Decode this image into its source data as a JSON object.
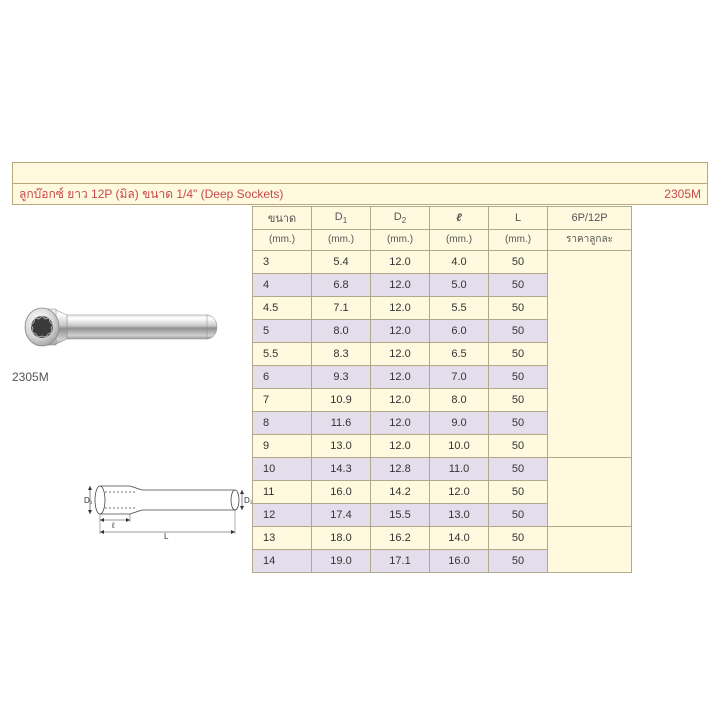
{
  "title": "ลูกบ๊อกซ์ ยาว 12P (มิล) ขนาด 1/4\" (Deep Sockets)",
  "code": "2305M",
  "product_label": "2305M",
  "headers": {
    "size_top": "ขนาด",
    "size_bot": "(mm.)",
    "d1_top": "D",
    "d1_sub": "1",
    "d1_bot": "(mm.)",
    "d2_top": "D",
    "d2_sub": "2",
    "d2_bot": "(mm.)",
    "l1_top": "ℓ",
    "l1_bot": "(mm.)",
    "l2_top": "L",
    "l2_bot": "(mm.)",
    "price_top": "6P/12P",
    "price_bot": "ราคาลูกละ"
  },
  "colors": {
    "cream": "#fff9e0",
    "lavender": "#e4deec",
    "border": "#b0a888",
    "title_text": "#c84848"
  },
  "rows": [
    {
      "size": "3",
      "d1": "5.4",
      "d2": "12.0",
      "l1": "4.0",
      "l2": "50",
      "alt": false
    },
    {
      "size": "4",
      "d1": "6.8",
      "d2": "12.0",
      "l1": "5.0",
      "l2": "50",
      "alt": true
    },
    {
      "size": "4.5",
      "d1": "7.1",
      "d2": "12.0",
      "l1": "5.5",
      "l2": "50",
      "alt": false
    },
    {
      "size": "5",
      "d1": "8.0",
      "d2": "12.0",
      "l1": "6.0",
      "l2": "50",
      "alt": true
    },
    {
      "size": "5.5",
      "d1": "8.3",
      "d2": "12.0",
      "l1": "6.5",
      "l2": "50",
      "alt": false
    },
    {
      "size": "6",
      "d1": "9.3",
      "d2": "12.0",
      "l1": "7.0",
      "l2": "50",
      "alt": true
    },
    {
      "size": "7",
      "d1": "10.9",
      "d2": "12.0",
      "l1": "8.0",
      "l2": "50",
      "alt": false
    },
    {
      "size": "8",
      "d1": "11.6",
      "d2": "12.0",
      "l1": "9.0",
      "l2": "50",
      "alt": true
    },
    {
      "size": "9",
      "d1": "13.0",
      "d2": "12.0",
      "l1": "10.0",
      "l2": "50",
      "alt": false
    },
    {
      "size": "10",
      "d1": "14.3",
      "d2": "12.8",
      "l1": "11.0",
      "l2": "50",
      "alt": true
    },
    {
      "size": "11",
      "d1": "16.0",
      "d2": "14.2",
      "l1": "12.0",
      "l2": "50",
      "alt": false
    },
    {
      "size": "12",
      "d1": "17.4",
      "d2": "15.5",
      "l1": "13.0",
      "l2": "50",
      "alt": true
    },
    {
      "size": "13",
      "d1": "18.0",
      "d2": "16.2",
      "l1": "14.0",
      "l2": "50",
      "alt": false
    },
    {
      "size": "14",
      "d1": "19.0",
      "d2": "17.1",
      "l1": "16.0",
      "l2": "50",
      "alt": true
    }
  ],
  "price_groups": [
    9,
    3,
    2
  ]
}
